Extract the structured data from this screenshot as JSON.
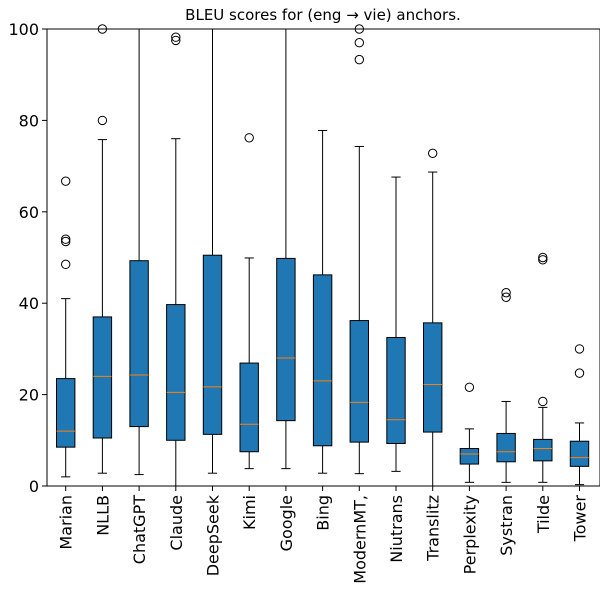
{
  "chart_data": {
    "type": "box",
    "title": "BLEU scores for (eng → vie) anchors.",
    "xlabel": "",
    "ylabel": "",
    "ylim": [
      0,
      100
    ],
    "yticks": [
      0,
      20,
      40,
      60,
      80,
      100
    ],
    "grid": false,
    "legend": "none",
    "colors": {
      "box_fill": "#1f77b4",
      "median": "#ff7f0e",
      "line": "#000000"
    },
    "categories": [
      "Marian",
      "NLLB",
      "ChatGPT",
      "Claude",
      "DeepSeek",
      "Kimi",
      "Google",
      "Bing",
      "ModernMT,",
      "Niutrans",
      "Translitz",
      "Perplexity",
      "Systran",
      "Tilde",
      "Tower"
    ],
    "boxes": [
      {
        "name": "Marian",
        "whisker_low": 2,
        "q1": 8.5,
        "median": 12,
        "q3": 23.5,
        "whisker_high": 41,
        "outliers": [
          48.5,
          53.5,
          54,
          66.7
        ]
      },
      {
        "name": "NLLB",
        "whisker_low": 2.8,
        "q1": 10.5,
        "median": 24,
        "q3": 37,
        "whisker_high": 75.8,
        "outliers": [
          80,
          100
        ]
      },
      {
        "name": "ChatGPT",
        "whisker_low": 2.5,
        "q1": 13,
        "median": 24.3,
        "q3": 49.3,
        "whisker_high": 100,
        "outliers": []
      },
      {
        "name": "Claude",
        "whisker_low": 0,
        "q1": 10,
        "median": 20.5,
        "q3": 39.7,
        "whisker_high": 76,
        "outliers": [
          97.5,
          98.2
        ]
      },
      {
        "name": "DeepSeek",
        "whisker_low": 2.8,
        "q1": 11.3,
        "median": 21.7,
        "q3": 50.5,
        "whisker_high": 100,
        "outliers": []
      },
      {
        "name": "Kimi",
        "whisker_low": 3.8,
        "q1": 7.5,
        "median": 13.5,
        "q3": 26.9,
        "whisker_high": 49.9,
        "outliers": [
          76.2
        ]
      },
      {
        "name": "Google",
        "whisker_low": 3.8,
        "q1": 14.3,
        "median": 28,
        "q3": 49.8,
        "whisker_high": 100,
        "outliers": []
      },
      {
        "name": "Bing",
        "whisker_low": 2.8,
        "q1": 8.8,
        "median": 23,
        "q3": 46.2,
        "whisker_high": 77.8,
        "outliers": []
      },
      {
        "name": "ModernMT,",
        "whisker_low": 2.7,
        "q1": 9.6,
        "median": 18.3,
        "q3": 36.2,
        "whisker_high": 74.3,
        "outliers": [
          93.3,
          97,
          100
        ]
      },
      {
        "name": "Niutrans",
        "whisker_low": 3.2,
        "q1": 9.3,
        "median": 14.5,
        "q3": 32.5,
        "whisker_high": 67.6,
        "outliers": []
      },
      {
        "name": "Translitz",
        "whisker_low": 0,
        "q1": 11.8,
        "median": 22.2,
        "q3": 35.7,
        "whisker_high": 68.7,
        "outliers": [
          72.8
        ]
      },
      {
        "name": "Perplexity",
        "whisker_low": 0.8,
        "q1": 4.8,
        "median": 7,
        "q3": 8.2,
        "whisker_high": 12.5,
        "outliers": [
          21.6
        ]
      },
      {
        "name": "Systran",
        "whisker_low": 0.8,
        "q1": 5.3,
        "median": 7.5,
        "q3": 11.5,
        "whisker_high": 18.5,
        "outliers": [
          41.3,
          42.3
        ]
      },
      {
        "name": "Tilde",
        "whisker_low": 0.8,
        "q1": 5.5,
        "median": 8.2,
        "q3": 10.2,
        "whisker_high": 17.2,
        "outliers": [
          18.5,
          49.5,
          50
        ]
      },
      {
        "name": "Tower",
        "whisker_low": 0.3,
        "q1": 4.3,
        "median": 6.2,
        "q3": 9.8,
        "whisker_high": 13.8,
        "outliers": [
          24.7,
          30
        ]
      }
    ]
  }
}
